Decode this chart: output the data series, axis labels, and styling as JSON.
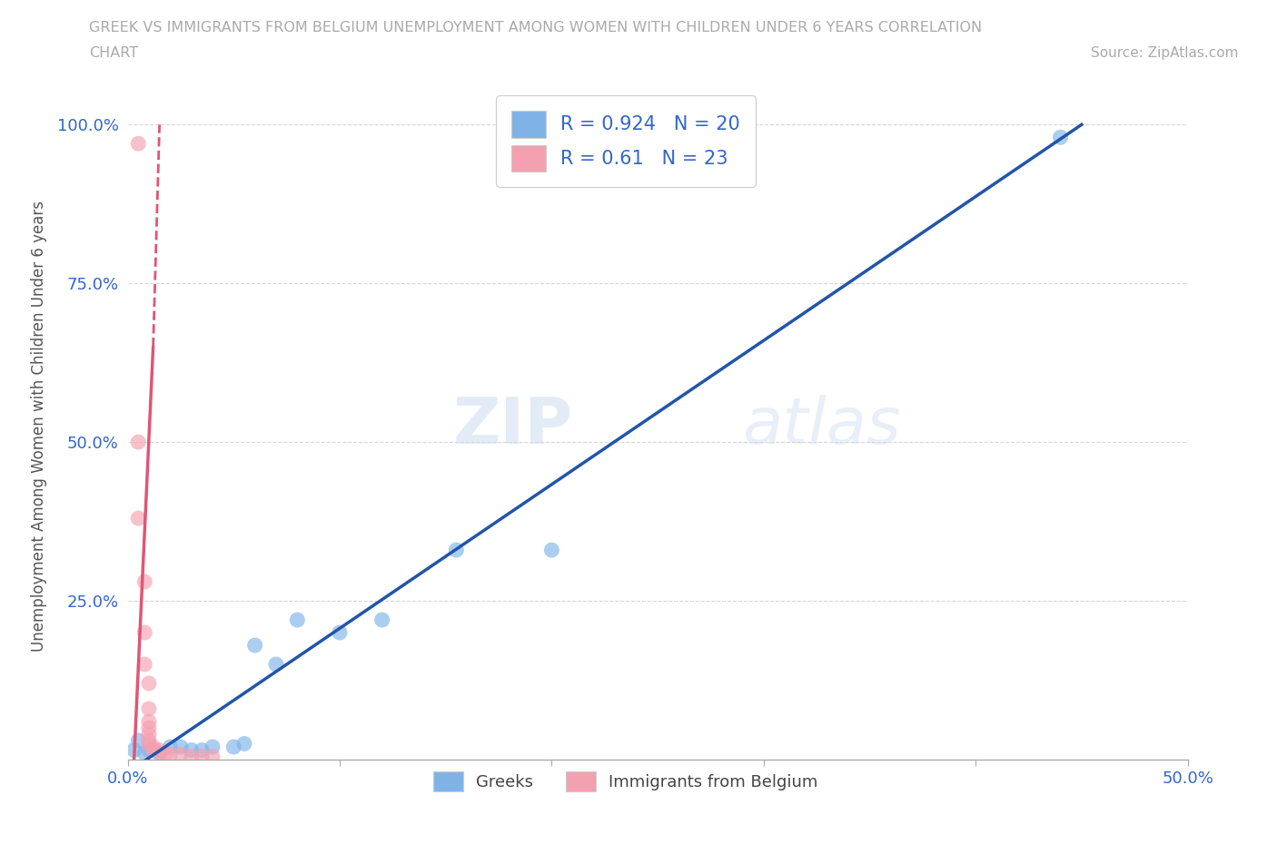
{
  "title_line1": "GREEK VS IMMIGRANTS FROM BELGIUM UNEMPLOYMENT AMONG WOMEN WITH CHILDREN UNDER 6 YEARS CORRELATION",
  "title_line2": "CHART",
  "source": "Source: ZipAtlas.com",
  "ylabel": "Unemployment Among Women with Children Under 6 years",
  "xlim": [
    0,
    50
  ],
  "ylim": [
    0,
    105
  ],
  "xticks": [
    0,
    10,
    20,
    30,
    40,
    50
  ],
  "yticks": [
    0,
    25,
    50,
    75,
    100
  ],
  "xticklabels": [
    "0.0%",
    "",
    "",
    "",
    "",
    "50.0%"
  ],
  "yticklabels": [
    "",
    "25.0%",
    "50.0%",
    "75.0%",
    "100.0%"
  ],
  "greek_R": 0.924,
  "greek_N": 20,
  "belgium_R": 0.61,
  "belgium_N": 23,
  "greek_color": "#7fb3e8",
  "belgium_color": "#f4a0b0",
  "greek_line_color": "#2255aa",
  "belgium_line_color": "#e05575",
  "watermark_zip": "ZIP",
  "watermark_atlas": "atlas",
  "legend_labels": [
    "Greeks",
    "Immigrants from Belgium"
  ],
  "greek_line_x0": 0,
  "greek_line_y0": -2,
  "greek_line_x1": 45,
  "greek_line_y1": 100,
  "belgium_line_solid_x0": 0.3,
  "belgium_line_solid_y0": 0,
  "belgium_line_solid_x1": 1.2,
  "belgium_line_solid_y1": 65,
  "belgium_line_dash_x0": 1.2,
  "belgium_line_dash_y0": 65,
  "belgium_line_dash_x1": 1.5,
  "belgium_line_dash_y1": 100,
  "greek_points": [
    [
      0.3,
      1.5
    ],
    [
      0.5,
      3.0
    ],
    [
      0.8,
      1.0
    ],
    [
      1.0,
      1.5
    ],
    [
      1.5,
      1.0
    ],
    [
      2.0,
      2.0
    ],
    [
      2.5,
      2.0
    ],
    [
      3.0,
      1.5
    ],
    [
      3.5,
      1.5
    ],
    [
      4.0,
      2.0
    ],
    [
      5.0,
      2.0
    ],
    [
      5.5,
      2.5
    ],
    [
      6.0,
      18.0
    ],
    [
      7.0,
      15.0
    ],
    [
      8.0,
      22.0
    ],
    [
      10.0,
      20.0
    ],
    [
      12.0,
      22.0
    ],
    [
      15.5,
      33.0
    ],
    [
      20.0,
      33.0
    ],
    [
      44.0,
      98.0
    ]
  ],
  "belgium_points": [
    [
      0.5,
      97.0
    ],
    [
      0.5,
      50.0
    ],
    [
      0.5,
      38.0
    ],
    [
      0.8,
      20.0
    ],
    [
      0.8,
      15.0
    ],
    [
      0.8,
      28.0
    ],
    [
      1.0,
      12.0
    ],
    [
      1.0,
      8.0
    ],
    [
      1.0,
      6.0
    ],
    [
      1.0,
      5.0
    ],
    [
      1.0,
      4.0
    ],
    [
      1.0,
      3.0
    ],
    [
      1.0,
      2.5
    ],
    [
      1.2,
      2.0
    ],
    [
      1.2,
      1.5
    ],
    [
      1.5,
      1.5
    ],
    [
      1.5,
      1.0
    ],
    [
      1.8,
      1.0
    ],
    [
      2.0,
      0.8
    ],
    [
      2.5,
      0.8
    ],
    [
      3.0,
      0.5
    ],
    [
      3.5,
      0.5
    ],
    [
      4.0,
      0.5
    ]
  ]
}
